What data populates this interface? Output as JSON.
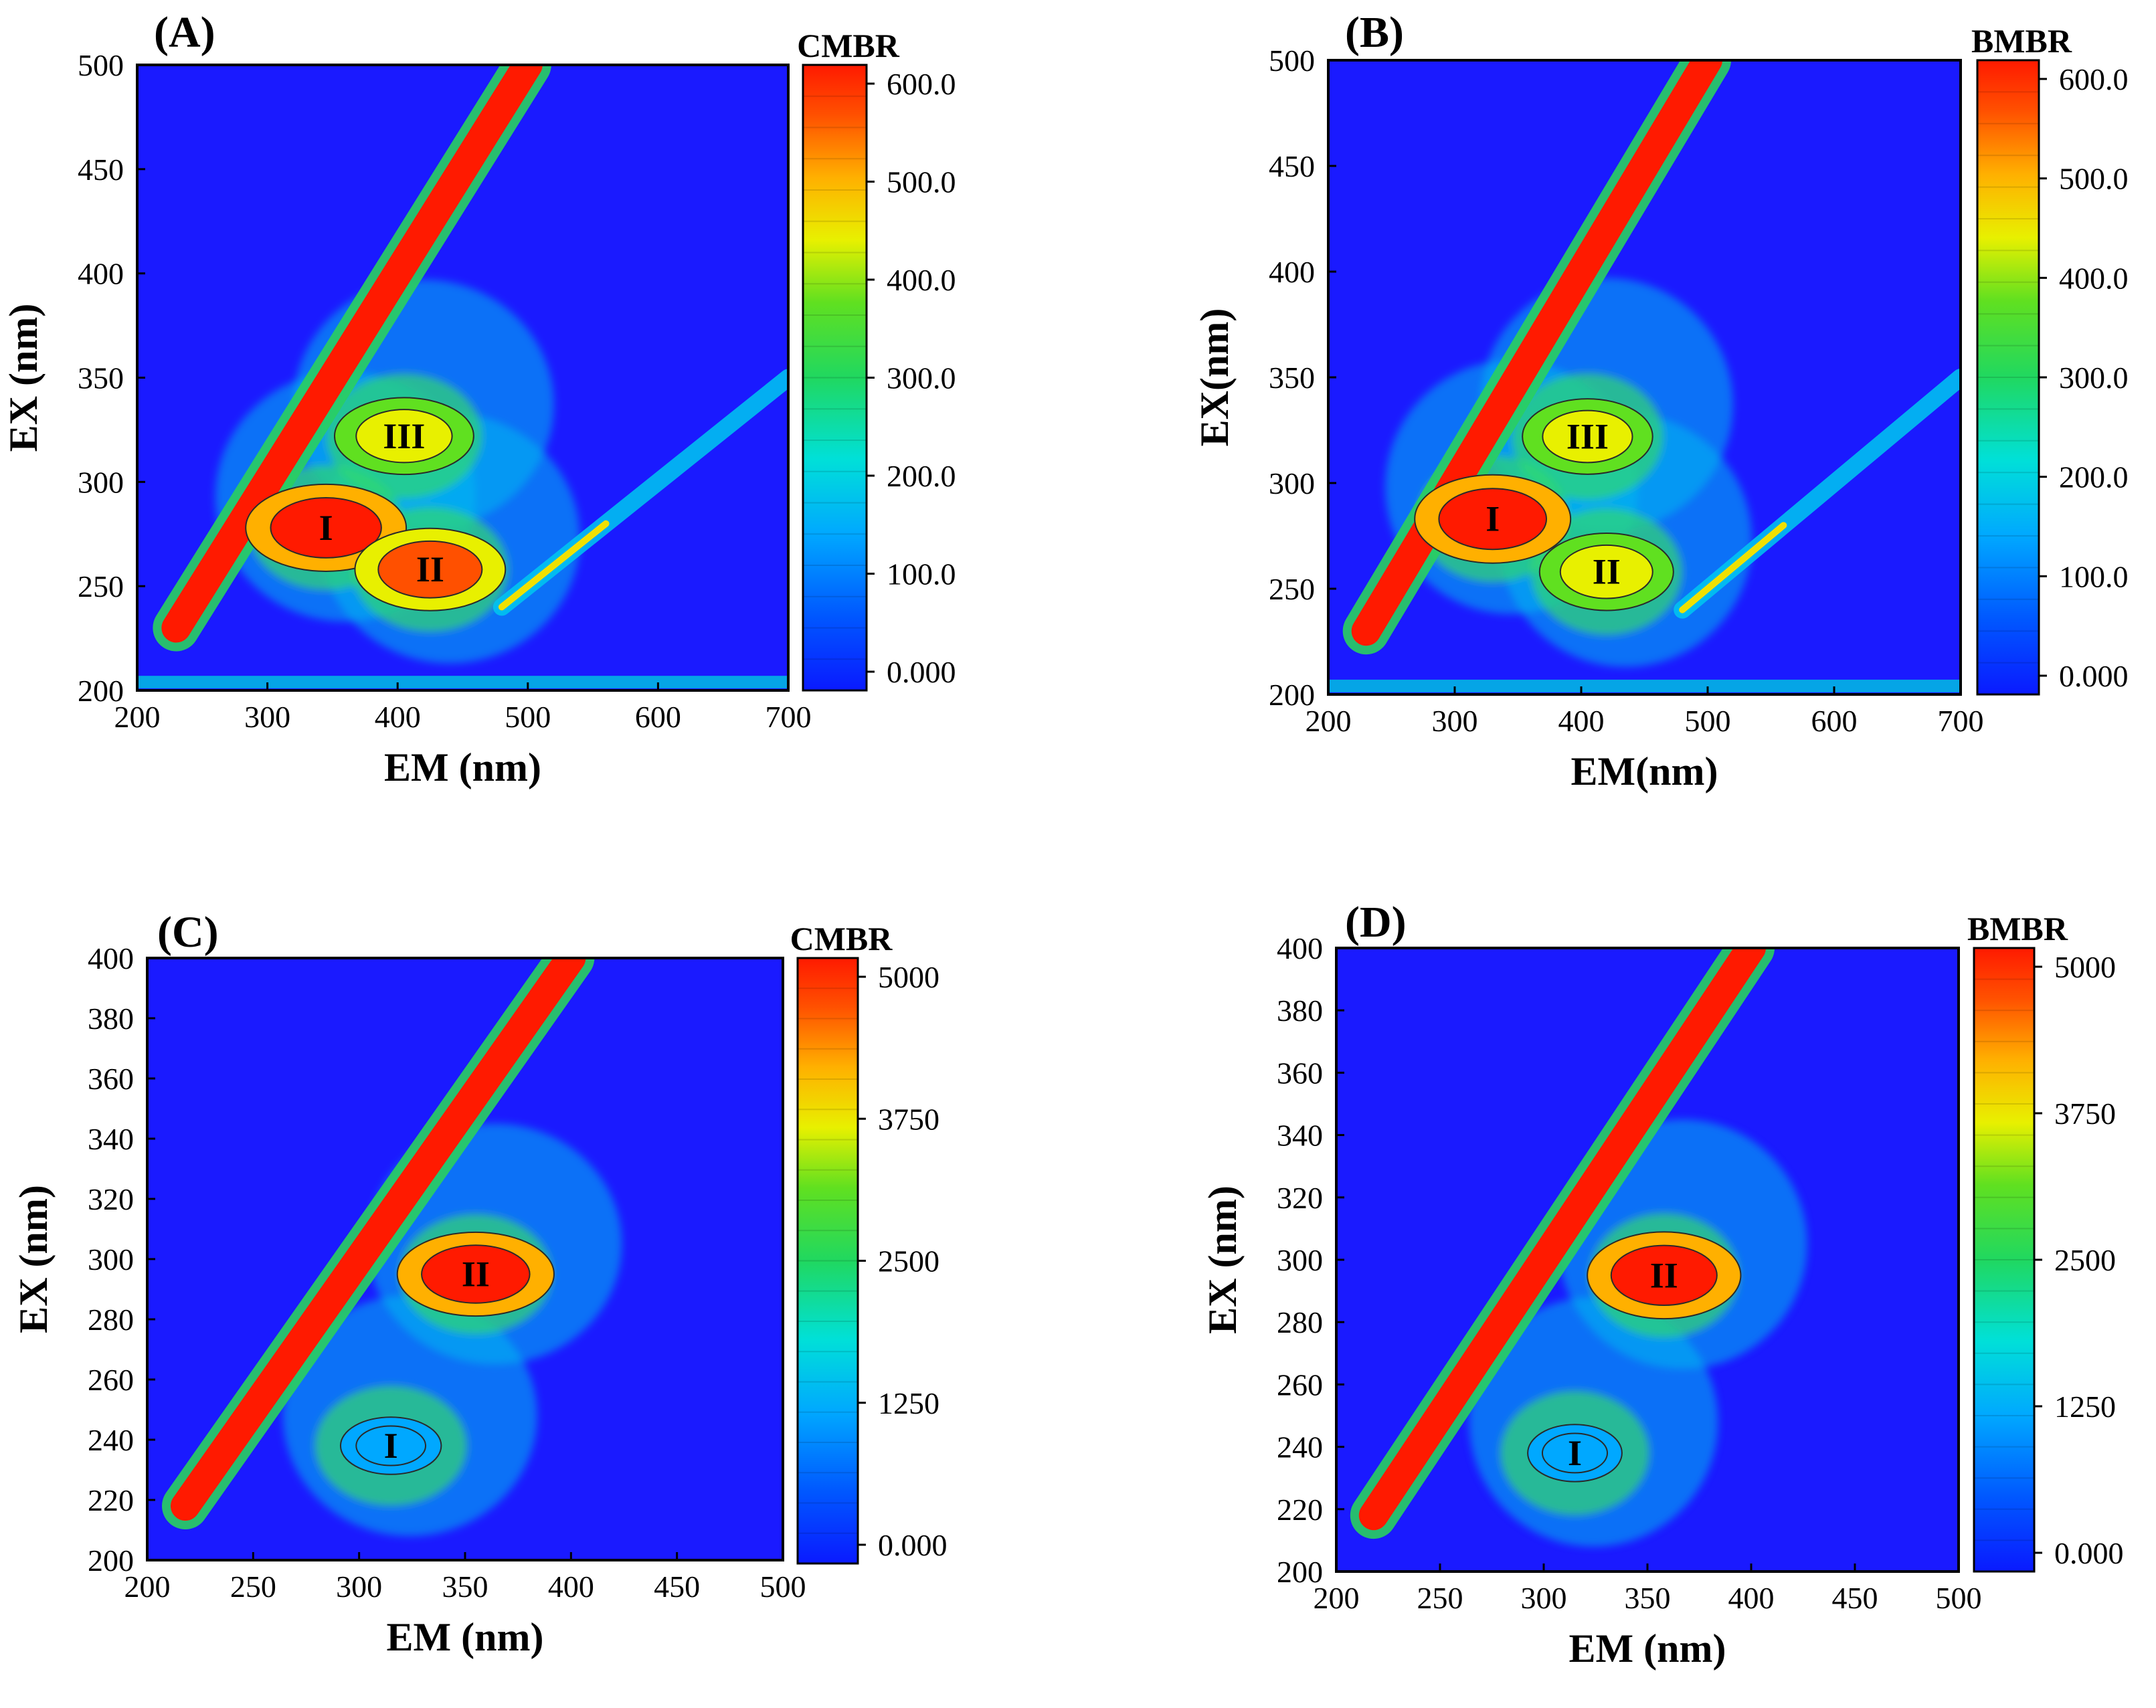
{
  "figure": {
    "panels": [
      {
        "label": "(A)",
        "colorbar": {
          "title": "CMBR",
          "ticks": [
            "600.0",
            "500.0",
            "400.0",
            "300.0",
            "200.0",
            "100.0",
            "0.000"
          ]
        },
        "xlabel": "EM (nm)",
        "ylabel": "EX (nm)",
        "xticks": [
          "200",
          "300",
          "400",
          "500",
          "600",
          "700"
        ],
        "yticks": [
          "500",
          "450",
          "400",
          "350",
          "300",
          "250",
          "200"
        ],
        "peaks": [
          "I",
          "II",
          "III"
        ]
      },
      {
        "label": "(B)",
        "colorbar": {
          "title": "BMBR",
          "ticks": [
            "600.0",
            "500.0",
            "400.0",
            "300.0",
            "200.0",
            "100.0",
            "0.000"
          ]
        },
        "xlabel": "EM(nm)",
        "ylabel": "EX(nm)",
        "xticks": [
          "200",
          "300",
          "400",
          "500",
          "600",
          "700"
        ],
        "yticks": [
          "500",
          "450",
          "400",
          "350",
          "300",
          "250",
          "200"
        ],
        "peaks": [
          "I",
          "II",
          "III"
        ]
      },
      {
        "label": "(C)",
        "colorbar": {
          "title": "CMBR",
          "ticks": [
            "5000",
            "3750",
            "2500",
            "1250",
            "0.000"
          ]
        },
        "xlabel": "EM (nm)",
        "ylabel": "EX (nm)",
        "xticks": [
          "200",
          "250",
          "300",
          "350",
          "400",
          "450",
          "500"
        ],
        "yticks": [
          "400",
          "380",
          "360",
          "340",
          "320",
          "300",
          "280",
          "260",
          "240",
          "220",
          "200"
        ],
        "peaks": [
          "I",
          "II"
        ]
      },
      {
        "label": "(D)",
        "colorbar": {
          "title": "BMBR",
          "ticks": [
            "5000",
            "3750",
            "2500",
            "1250",
            "0.000"
          ]
        },
        "xlabel": "EM (nm)",
        "ylabel": "EX (nm)",
        "xticks": [
          "200",
          "250",
          "300",
          "350",
          "400",
          "450",
          "500"
        ],
        "yticks": [
          "400",
          "380",
          "360",
          "340",
          "320",
          "300",
          "280",
          "260",
          "240",
          "220",
          "200"
        ],
        "peaks": [
          "I",
          "II"
        ]
      }
    ]
  },
  "colors": {
    "background": "#1a1aff",
    "low": "#0040ff",
    "mid": "#00d0c0",
    "green": "#30d030",
    "yellow": "#f0f000",
    "orange": "#ff9000",
    "high": "#ff1a00",
    "contour": "#2a2a2a"
  },
  "chart_data": [
    {
      "type": "heatmap",
      "title": "(A)",
      "series_name": "CMBR",
      "xlabel": "EM (nm)",
      "ylabel": "EX (nm)",
      "xlim": [
        200,
        700
      ],
      "ylim": [
        200,
        500
      ],
      "zlim": [
        0,
        600
      ],
      "peaks": [
        {
          "name": "I",
          "em": 345,
          "ex": 278,
          "intensity": 600
        },
        {
          "name": "II",
          "em": 425,
          "ex": 258,
          "intensity": 520
        },
        {
          "name": "III",
          "em": 405,
          "ex": 322,
          "intensity": 430
        }
      ]
    },
    {
      "type": "heatmap",
      "title": "(B)",
      "series_name": "BMBR",
      "xlabel": "EM(nm)",
      "ylabel": "EX(nm)",
      "xlim": [
        200,
        700
      ],
      "ylim": [
        200,
        500
      ],
      "zlim": [
        0,
        600
      ],
      "peaks": [
        {
          "name": "I",
          "em": 330,
          "ex": 283,
          "intensity": 600
        },
        {
          "name": "II",
          "em": 420,
          "ex": 258,
          "intensity": 420
        },
        {
          "name": "III",
          "em": 405,
          "ex": 322,
          "intensity": 390
        }
      ]
    },
    {
      "type": "heatmap",
      "title": "(C)",
      "series_name": "CMBR",
      "xlabel": "EM (nm)",
      "ylabel": "EX (nm)",
      "xlim": [
        200,
        500
      ],
      "ylim": [
        200,
        400
      ],
      "zlim": [
        0,
        5000
      ],
      "peaks": [
        {
          "name": "I",
          "em": 315,
          "ex": 238,
          "intensity": 1200
        },
        {
          "name": "II",
          "em": 355,
          "ex": 295,
          "intensity": 5000
        }
      ]
    },
    {
      "type": "heatmap",
      "title": "(D)",
      "series_name": "BMBR",
      "xlabel": "EM (nm)",
      "ylabel": "EX (nm)",
      "xlim": [
        200,
        500
      ],
      "ylim": [
        200,
        400
      ],
      "zlim": [
        0,
        5000
      ],
      "peaks": [
        {
          "name": "I",
          "em": 315,
          "ex": 238,
          "intensity": 900
        },
        {
          "name": "II",
          "em": 358,
          "ex": 295,
          "intensity": 5000
        }
      ]
    }
  ]
}
